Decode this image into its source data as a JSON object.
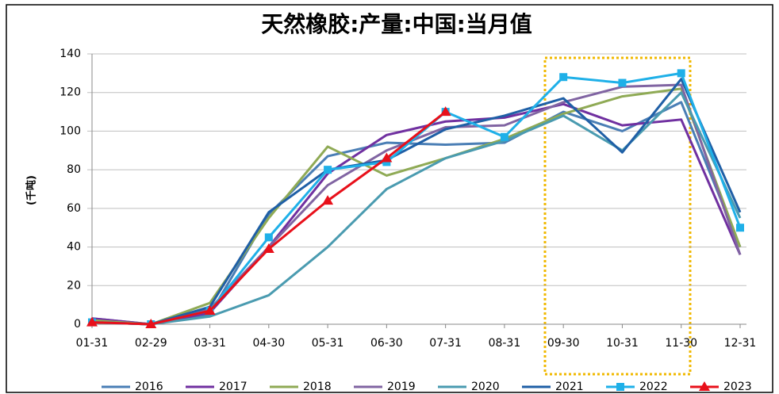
{
  "chart_data": {
    "type": "line",
    "title": "天然橡胶:产量:中国:当月值",
    "y_label": "(千吨)",
    "categories": [
      "01-31",
      "02-29",
      "03-31",
      "04-30",
      "05-31",
      "06-30",
      "07-31",
      "08-31",
      "09-30",
      "10-31",
      "11-30",
      "12-31"
    ],
    "ylim": [
      0,
      140
    ],
    "yticks": [
      0,
      20,
      40,
      60,
      80,
      100,
      120,
      140
    ],
    "grid": true,
    "series": [
      {
        "name": "2016",
        "color": "#4a7eb5",
        "values": [
          3,
          0,
          5,
          57,
          87,
          94,
          93,
          94,
          110,
          100,
          115,
          40
        ]
      },
      {
        "name": "2017",
        "color": "#7030a0",
        "values": [
          3,
          0,
          6,
          40,
          78,
          98,
          105,
          107,
          114,
          103,
          106,
          36
        ]
      },
      {
        "name": "2018",
        "color": "#8faa55",
        "values": [
          2,
          0,
          11,
          55,
          92,
          77,
          86,
          96,
          109,
          118,
          122,
          40
        ]
      },
      {
        "name": "2019",
        "color": "#8064a2",
        "values": [
          1,
          0,
          8,
          40,
          72,
          90,
          102,
          103,
          115,
          123,
          124,
          36
        ]
      },
      {
        "name": "2020",
        "color": "#4a9bb0",
        "values": [
          1,
          0,
          4,
          15,
          40,
          70,
          86,
          95,
          108,
          90,
          120,
          55
        ]
      },
      {
        "name": "2021",
        "color": "#1f5fa6",
        "values": [
          1,
          0,
          9,
          58,
          80,
          85,
          101,
          108,
          117,
          89,
          127,
          58
        ]
      },
      {
        "name": "2022",
        "color": "#1fb0e8",
        "marker": "square",
        "values": [
          1,
          0,
          7,
          45,
          80,
          84,
          110,
          97,
          128,
          125,
          130,
          50
        ]
      },
      {
        "name": "2023",
        "color": "#e8101a",
        "marker": "triangle",
        "values": [
          1,
          0,
          7,
          39,
          64,
          86,
          110,
          null,
          null,
          null,
          null,
          null
        ]
      }
    ]
  }
}
